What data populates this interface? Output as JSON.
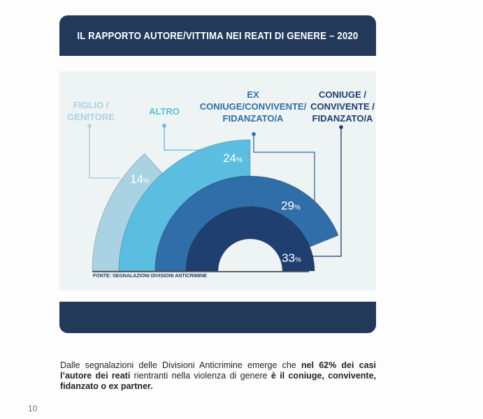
{
  "title": "IL RAPPORTO AUTORE/VITTIMA NEI REATI DI GENERE – 2020",
  "chart_data": {
    "type": "pie",
    "title": "IL RAPPORTO AUTORE/VITTIMA NEI REATI DI GENERE – 2020",
    "categories": [
      "FIGLIO / GENITORE",
      "ALTRO",
      "EX CONIUGE/CONVIVENTE/ FIDANZATO/A",
      "CONIUGE / CONVIVENTE / FIDANZATO/A"
    ],
    "values": [
      14,
      24,
      29,
      33
    ],
    "unit": "%",
    "colors": [
      "#a9d3e2",
      "#5bbde0",
      "#2f6ea8",
      "#1e3f6f"
    ],
    "label_lines": [
      [
        "FIGLIO /",
        "GENITORE"
      ],
      [
        "ALTRO"
      ],
      [
        "EX",
        "CONIUGE/CONVIVENTE/",
        "FIDANZATO/A"
      ],
      [
        "CONIUGE /",
        "CONVIVENTE /",
        "FIDANZATO/A"
      ]
    ],
    "source": "FONTE: SEGNALAZIONI DIVISIONI ANTICRIMINE"
  },
  "caption": {
    "p1": "Dalle segnalazioni delle Divisioni Anticrimine emerge che ",
    "b1": "nel 62% dei casi l’autore dei reati",
    "p2": " rientranti nella violenza di genere ",
    "b2": "è il coniuge, convivente, fidanzato o ex partner."
  },
  "page_number": "10"
}
